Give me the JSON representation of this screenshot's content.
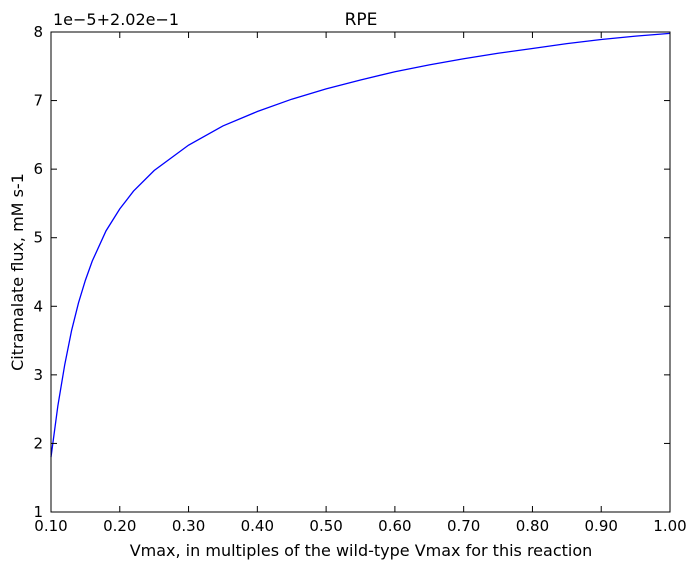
{
  "chart_data": {
    "type": "line",
    "title": "RPE",
    "xlabel": "Vmax, in multiples of the wild-type Vmax for this reaction",
    "ylabel": "Citramalate flux, mM s-1",
    "offset_label": "1e−5+2.02e−1",
    "xlim": [
      0.1,
      1.0
    ],
    "ylim": [
      1,
      8
    ],
    "x_ticks": [
      0.1,
      0.2,
      0.3,
      0.4,
      0.5,
      0.6,
      0.7,
      0.8,
      0.9,
      1.0
    ],
    "x_tick_labels": [
      "0.10",
      "0.20",
      "0.30",
      "0.40",
      "0.50",
      "0.60",
      "0.70",
      "0.80",
      "0.90",
      "1.00"
    ],
    "y_ticks": [
      1,
      2,
      3,
      4,
      5,
      6,
      7,
      8
    ],
    "y_tick_labels": [
      "1",
      "2",
      "3",
      "4",
      "5",
      "6",
      "7",
      "8"
    ],
    "grid": false,
    "legend": "none",
    "series": [
      {
        "color": "#0000ff",
        "x": [
          0.1,
          0.11,
          0.12,
          0.13,
          0.14,
          0.15,
          0.16,
          0.18,
          0.2,
          0.22,
          0.25,
          0.3,
          0.35,
          0.4,
          0.45,
          0.5,
          0.55,
          0.6,
          0.65,
          0.7,
          0.75,
          0.8,
          0.85,
          0.9,
          0.95,
          1.0
        ],
        "y": [
          1.8,
          2.55,
          3.15,
          3.65,
          4.05,
          4.38,
          4.66,
          5.1,
          5.42,
          5.68,
          5.98,
          6.35,
          6.63,
          6.84,
          7.02,
          7.17,
          7.3,
          7.42,
          7.52,
          7.61,
          7.69,
          7.76,
          7.83,
          7.89,
          7.94,
          7.98
        ]
      }
    ]
  }
}
